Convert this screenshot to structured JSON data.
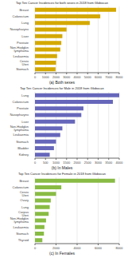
{
  "chart_data": [
    {
      "type": "bar",
      "title": "Top Ten Cancer Incidences for both sexes in 2018 from Globocan",
      "xlabel": "(a) Both sexes",
      "orientation": "horizontal",
      "categories": [
        "Breast",
        "Colorectum",
        "Lung",
        "Nasopharynx",
        "Liver",
        "Prostate",
        "Non-Hodgkin lymphoma",
        "Leukaemia",
        "Cervix Uteri",
        "Stomach"
      ],
      "values": [
        7700,
        6200,
        5200,
        3000,
        2600,
        2500,
        2400,
        2100,
        2000,
        1950
      ],
      "color": "#D4A800",
      "xlim": [
        0,
        8000
      ],
      "xticks": [
        0,
        1000,
        2000,
        3000,
        4000,
        5000,
        6000,
        7000,
        8000
      ],
      "grid": true
    },
    {
      "type": "bar",
      "title": "Top Ten Cancer Incidences for Male in 2018 from Globocan",
      "xlabel": "(b) In Males",
      "orientation": "horizontal",
      "categories": [
        "Lung",
        "Colorectum",
        "Prostate",
        "Nasopharynx",
        "Liver",
        "Non-Hodgkin lymphoma",
        "Leukaemia",
        "Stomach",
        "Bladder",
        "Kidney"
      ],
      "values": [
        4000,
        3700,
        2300,
        2200,
        1900,
        1300,
        1200,
        1000,
        900,
        700
      ],
      "color": "#6666BB",
      "xlim": [
        0,
        4000
      ],
      "xticks": [
        0,
        500,
        1000,
        1500,
        2000,
        2500,
        3000,
        3500,
        4000
      ],
      "grid": true
    },
    {
      "type": "bar",
      "title": "Top Ten Cancer Incidences for Female in 2018 from Globocan",
      "xlabel": "(c) In Females",
      "orientation": "horizontal",
      "categories": [
        "Breast",
        "Colorectum",
        "Cervix Uteri",
        "Ovary",
        "Lung",
        "Corpus Uteri",
        "Non-Hodgkin lymphoma",
        "Leukaemia",
        "Stomach",
        "Thyroid"
      ],
      "values": [
        7600,
        2500,
        2000,
        1500,
        1400,
        1300,
        1050,
        900,
        850,
        700
      ],
      "color": "#88BB44",
      "xlim": [
        0,
        8000
      ],
      "xticks": [
        0,
        2000,
        4000,
        6000,
        8000
      ],
      "grid": true
    }
  ]
}
